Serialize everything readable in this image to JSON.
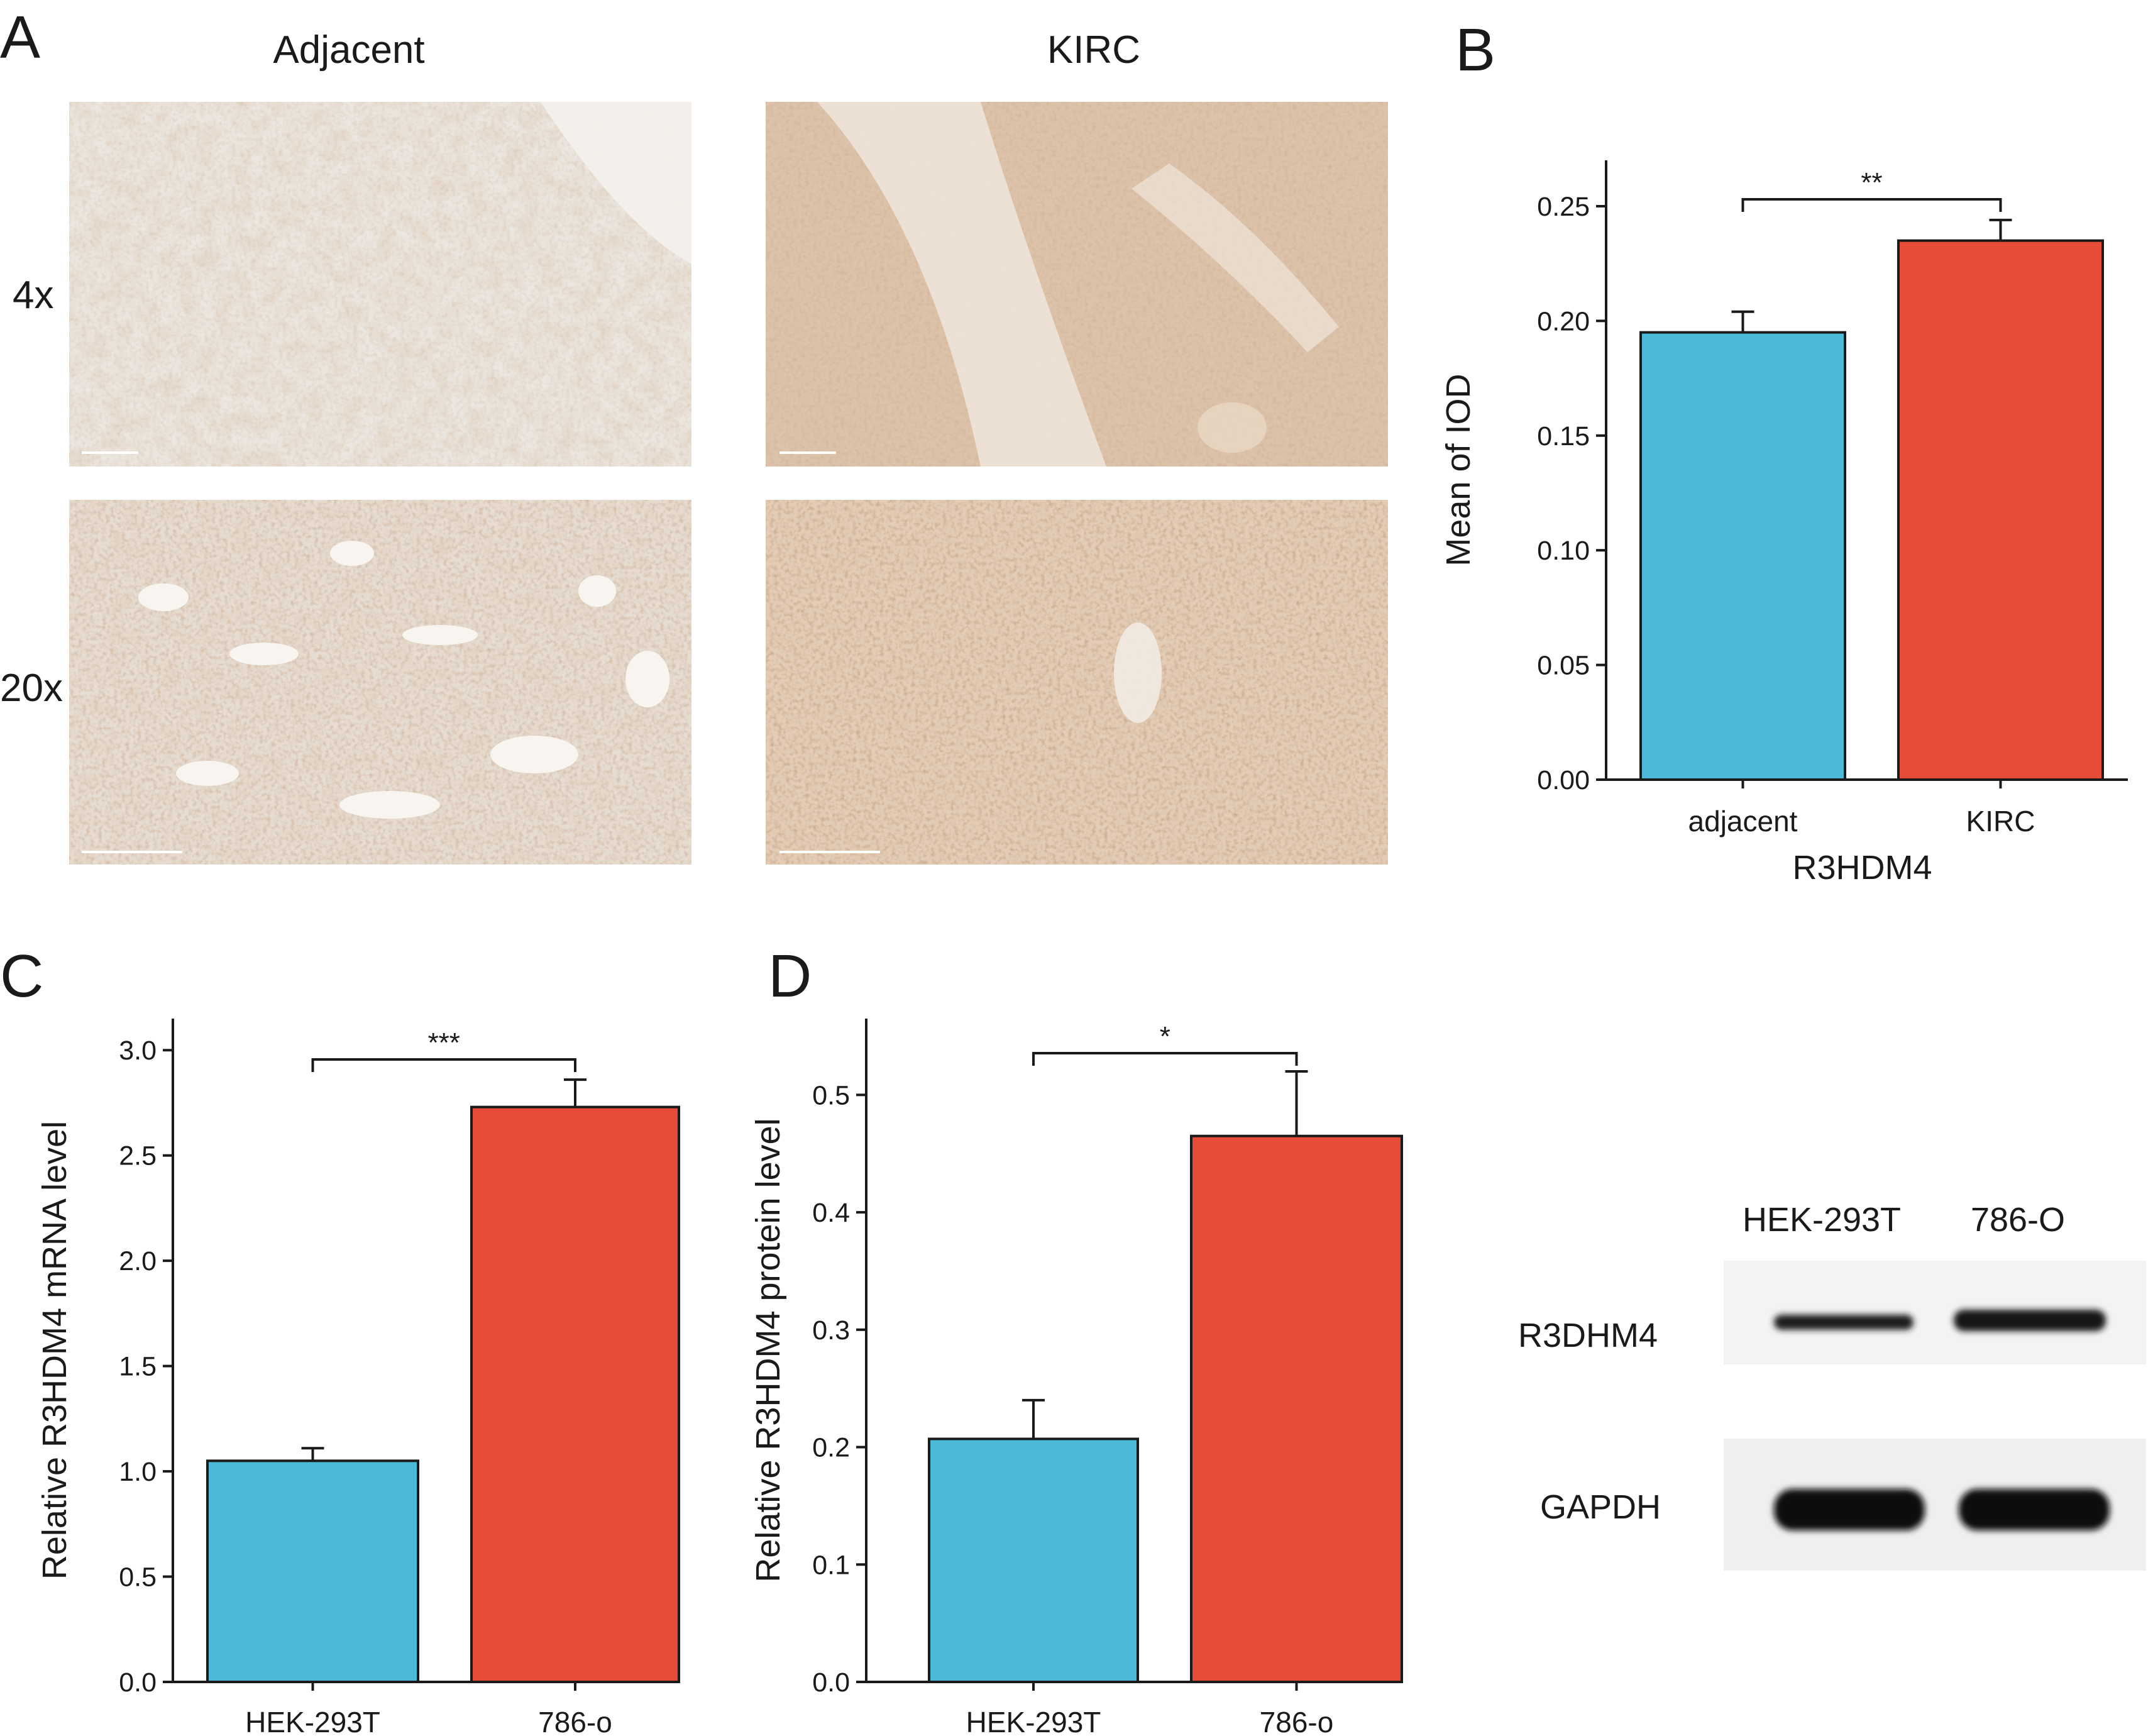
{
  "panels": {
    "a": {
      "letter": "A",
      "columns": [
        "Adjacent",
        "KIRC"
      ],
      "rows": [
        "4x",
        "20x"
      ]
    },
    "b": {
      "letter": "B"
    },
    "c": {
      "letter": "C"
    },
    "d": {
      "letter": "D"
    }
  },
  "western_blot": {
    "lanes": [
      "HEK-293T",
      "786-O"
    ],
    "bands": [
      "R3DHM4",
      "GAPDH"
    ]
  },
  "colors": {
    "adjacent_bar": "#4bbad6",
    "tumor_bar": "#e64c37",
    "stain_brown": "#b07a52",
    "blot_band": "#141414"
  },
  "chart_data": [
    {
      "type": "bar",
      "panel": "B",
      "title": "",
      "xlabel": "R3HDM4",
      "ylabel": "Mean of IOD",
      "categories": [
        "adjacent",
        "KIRC"
      ],
      "values": [
        0.195,
        0.235
      ],
      "errors": [
        0.009,
        0.009
      ],
      "ylim": [
        0,
        0.27
      ],
      "yticks": [
        "0.00",
        "0.05",
        "0.10",
        "0.15",
        "0.20",
        "0.25"
      ],
      "significance": "**",
      "grid": false,
      "legend": "none"
    },
    {
      "type": "bar",
      "panel": "C",
      "title": "",
      "xlabel": "",
      "ylabel": "Relative R3HDM4 mRNA level",
      "categories": [
        "HEK-293T",
        "786-o"
      ],
      "values": [
        1.05,
        2.73
      ],
      "errors": [
        0.06,
        0.13
      ],
      "ylim": [
        0,
        3.15
      ],
      "yticks": [
        "0.0",
        "0.5",
        "1.0",
        "1.5",
        "2.0",
        "2.5",
        "3.0"
      ],
      "significance": "***",
      "grid": false,
      "legend": "none"
    },
    {
      "type": "bar",
      "panel": "D",
      "title": "",
      "xlabel": "",
      "ylabel": "Relative R3HDM4 protein level",
      "categories": [
        "HEK-293T",
        "786-o"
      ],
      "values": [
        0.207,
        0.465
      ],
      "errors": [
        0.033,
        0.055
      ],
      "ylim": [
        0,
        0.565
      ],
      "yticks": [
        "0.0",
        "0.1",
        "0.2",
        "0.3",
        "0.4",
        "0.5"
      ],
      "significance": "*",
      "grid": false,
      "legend": "none"
    }
  ]
}
